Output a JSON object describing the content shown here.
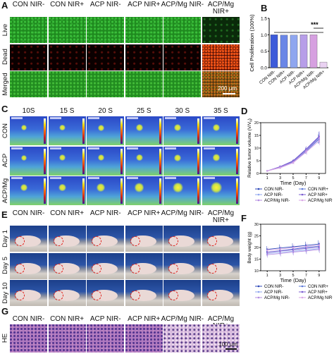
{
  "panels": {
    "A": {
      "label": "A",
      "columns": [
        "CON NIR-",
        "CON NIR+",
        "ACP NIR-",
        "ACP NIR+",
        "ACP/Mg NIR-",
        "ACP/Mg NIR+"
      ],
      "rows": [
        "Live",
        "Dead",
        "Merged"
      ],
      "scale": "200 μm"
    },
    "C": {
      "label": "C",
      "columns": [
        "10S",
        "15 S",
        "20 S",
        "25 S",
        "30 S",
        "35 S"
      ],
      "rows": [
        "CON",
        "ACP",
        "ACP/Mg"
      ]
    },
    "E": {
      "label": "E",
      "columns": [
        "CON NIR-",
        "CON NIR+",
        "ACP NIR-",
        "ACP NIR+",
        "ACP/Mg NIR-",
        "ACP/Mg NIR+"
      ],
      "rows": [
        "Day 1",
        "Day 5",
        "Day 10"
      ]
    },
    "G": {
      "label": "G",
      "columns": [
        "CON NIR-",
        "CON NIR+",
        "ACP NIR-",
        "ACP NIR+",
        "ACP/Mg NIR-",
        "ACP/Mg NIR+"
      ],
      "rows": [
        "HE"
      ],
      "scale": "100 μm"
    }
  },
  "chart_data": [
    {
      "panel": "B",
      "type": "bar",
      "ylabel": "Cell Proliferation (100%)",
      "ylim": [
        0,
        1.5
      ],
      "yticks": [
        "0.0",
        "0.5",
        "1.0",
        "1.5"
      ],
      "categories": [
        "CON NIR-",
        "CON NIR+",
        "ACP NIR-",
        "ACP NIR+",
        "ACP/Mg NIR-",
        "ACP/Mg NIR+"
      ],
      "values": [
        1.0,
        0.99,
        0.99,
        1.0,
        1.0,
        0.17
      ],
      "colors": [
        "#3d5bd9",
        "#6a86e6",
        "#8fa6ef",
        "#b79ee8",
        "#d6a0e0",
        "#ead2f2"
      ],
      "annotation": "***"
    },
    {
      "panel": "D",
      "type": "line",
      "xlabel": "Time (Day)",
      "ylabel": "Relative tumor volume (V/V",
      "ylabel_sub": "0",
      "ylabel_end": ")",
      "x": [
        1,
        3,
        5,
        7,
        9
      ],
      "xticks": [
        "1",
        "3",
        "5",
        "7",
        "9"
      ],
      "yticks": [
        "0",
        "5",
        "10",
        "15",
        "20"
      ],
      "ylim": [
        0,
        20
      ],
      "legend": "bottom",
      "series": [
        {
          "name": "CON NIR-",
          "color": "#2c47b8",
          "values": [
            1,
            2.4,
            4.6,
            8.8,
            13.6
          ],
          "err": [
            0.2,
            0.5,
            0.6,
            1.0,
            1.8
          ]
        },
        {
          "name": "CON NIR+",
          "color": "#5d7ad8",
          "values": [
            1,
            2.6,
            4.8,
            9.3,
            14.3
          ],
          "err": [
            0.2,
            0.5,
            0.6,
            1.0,
            2.0
          ]
        },
        {
          "name": "ACP NIR-",
          "color": "#8fa6ef",
          "values": [
            1,
            2.3,
            4.3,
            8.6,
            13.4
          ],
          "err": [
            0.2,
            0.4,
            0.6,
            1.0,
            1.8
          ]
        },
        {
          "name": "ACP NIR+",
          "color": "#7b5cd0",
          "values": [
            1,
            2.7,
            5.0,
            9.6,
            14.6
          ],
          "err": [
            0.2,
            0.5,
            0.7,
            1.1,
            2.0
          ]
        },
        {
          "name": "ACP/Mg NIR-",
          "color": "#b48de2",
          "values": [
            1,
            2.5,
            4.5,
            9.0,
            13.9
          ],
          "err": [
            0.2,
            0.5,
            0.6,
            1.0,
            1.9
          ]
        },
        {
          "name": "ACP/Mg NIR+",
          "color": "#d9a7e6",
          "values": [
            1,
            2.2,
            4.2,
            8.4,
            12.8
          ],
          "err": [
            0.2,
            0.4,
            0.6,
            1.0,
            1.7
          ]
        }
      ]
    },
    {
      "panel": "F",
      "type": "line",
      "xlabel": "Time (Day)",
      "ylabel": "Body weight (g)",
      "x": [
        1,
        3,
        5,
        7,
        9
      ],
      "xticks": [
        "1",
        "3",
        "5",
        "7",
        "9"
      ],
      "yticks": [
        "10",
        "15",
        "20",
        "25",
        "30"
      ],
      "ylim": [
        10,
        30
      ],
      "legend": "bottom",
      "series": [
        {
          "name": "CON NIR-",
          "color": "#2c47b8",
          "values": [
            19.2,
            19.8,
            20.3,
            20.9,
            21.5
          ],
          "err": [
            1.4,
            1.5,
            1.5,
            1.6,
            1.6
          ]
        },
        {
          "name": "CON NIR+",
          "color": "#5d7ad8",
          "values": [
            18.0,
            18.6,
            19.3,
            20.0,
            20.6
          ],
          "err": [
            1.4,
            1.5,
            1.5,
            1.6,
            1.6
          ]
        },
        {
          "name": "ACP NIR-",
          "color": "#8fa6ef",
          "values": [
            17.4,
            17.9,
            18.4,
            18.9,
            19.5
          ],
          "err": [
            1.3,
            1.4,
            1.4,
            1.5,
            1.5
          ]
        },
        {
          "name": "ACP NIR+",
          "color": "#7b5cd0",
          "values": [
            17.9,
            18.5,
            19.0,
            19.6,
            20.1
          ],
          "err": [
            1.3,
            1.4,
            1.4,
            1.5,
            1.5
          ]
        },
        {
          "name": "ACP/Mg NIR-",
          "color": "#b48de2",
          "values": [
            16.9,
            17.4,
            18.0,
            18.5,
            19.1
          ],
          "err": [
            1.3,
            1.3,
            1.4,
            1.4,
            1.5
          ]
        },
        {
          "name": "ACP/Mg NIR+",
          "color": "#d9a7e6",
          "values": [
            18.8,
            19.3,
            19.9,
            20.4,
            21.0
          ],
          "err": [
            1.4,
            1.5,
            1.5,
            1.6,
            1.6
          ]
        }
      ]
    }
  ],
  "panel_labels": {
    "B": "B",
    "D": "D",
    "F": "F"
  }
}
